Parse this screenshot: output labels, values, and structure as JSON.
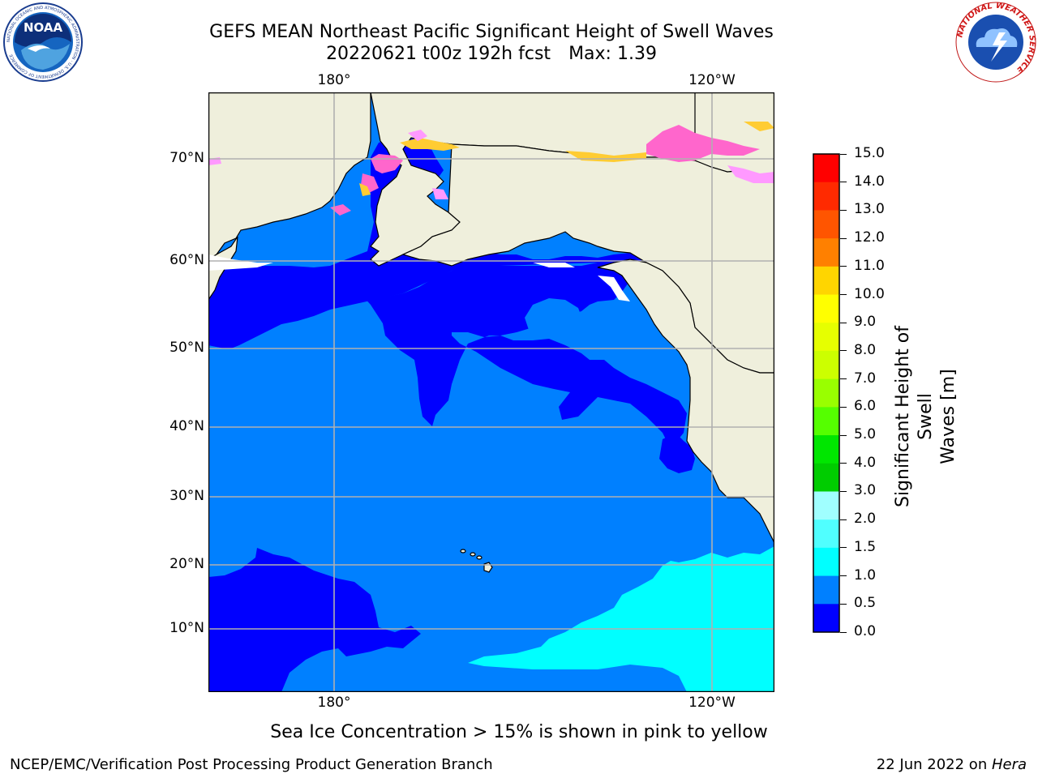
{
  "title": {
    "line1": "GEFS MEAN Northeast Pacific Significant Height of Swell Waves",
    "run": "20220621 t00z 192h fcst",
    "max": "Max: 1.39"
  },
  "logos": {
    "noaa": {
      "name": "noaa-logo",
      "text": "NOAA",
      "ring_text": "NATIONAL OCEANIC AND ATMOSPHERIC ADMINISTRATION · U.S. DEPARTMENT OF COMMERCE"
    },
    "nws": {
      "name": "nws-logo",
      "ring_text": "NATIONAL WEATHER SERVICE"
    }
  },
  "map": {
    "lon_labels": [
      "180°",
      "120°W"
    ],
    "lat_labels": [
      "70°N",
      "60°N",
      "50°N",
      "40°N",
      "30°N",
      "20°N",
      "10°N"
    ],
    "colors": {
      "land": "#efefdc",
      "water_low": "#0000ff",
      "water_mid": "#0080ff",
      "water_high": "#00ffff",
      "grid": "#b0b0b0",
      "ice": [
        "#ff66cc",
        "#ff99ff",
        "#ffcc33"
      ]
    }
  },
  "colorbar": {
    "title_line1": "Significant Height of Swell",
    "title_line2": "Waves [m]",
    "ticks": [
      "15.0",
      "14.0",
      "13.0",
      "12.0",
      "11.0",
      "10.0",
      "9.0",
      "8.0",
      "7.0",
      "6.0",
      "5.0",
      "4.0",
      "3.0",
      "2.0",
      "1.5",
      "1.0",
      "0.5",
      "0.0"
    ],
    "colors": [
      "#ff0000",
      "#ff2a00",
      "#ff5500",
      "#ff8000",
      "#ffaa00",
      "#ffd500",
      "#ffff00",
      "#e6ff00",
      "#ccff00",
      "#99ff00",
      "#55ff00",
      "#00e600",
      "#00cc00",
      "#55ff80",
      "#a0ffff",
      "#50ffff",
      "#00ffff",
      "#0080ff",
      "#0000ff"
    ]
  },
  "note": "Sea Ice Concentration > 15% is shown in pink to yellow",
  "footer": {
    "left": "NCEP/EMC/Verification Post Processing Product Generation Branch",
    "right_prefix": "22 Jun 2022 on ",
    "right_host": "Hera"
  }
}
